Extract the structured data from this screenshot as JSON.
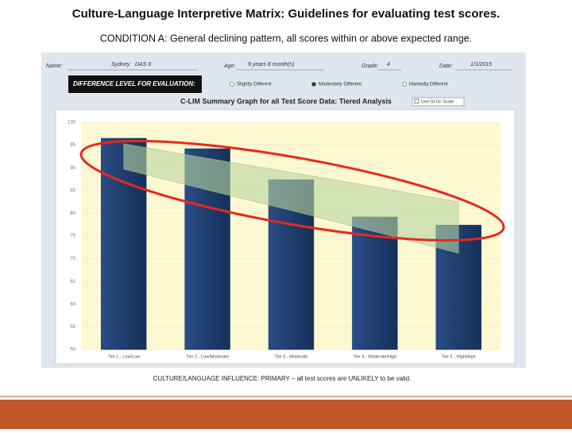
{
  "slide_title": "Culture-Language Interpretive Matrix: Guidelines for evaluating test scores.",
  "slide_subtitle": "CONDITION A: General declining pattern, all scores within or above expected range.",
  "form": {
    "name_label": "Name:",
    "name": "Sydney",
    "test": "DAS II",
    "age_label": "Age:",
    "age": "9 years 8 month(s)",
    "grade_label": "Grade:",
    "grade": "4",
    "date_label": "Date:",
    "date": "1/1/2015",
    "difference_label": "DIFFERENCE LEVEL FOR EVALUATION:",
    "options": [
      "Slightly Different",
      "Moderately Different",
      "Markedly Different"
    ],
    "checkbox": "Use Gf-Gc Scale"
  },
  "footer": "CULTURE/LANGUAGE INFLUENCE: PRIMARY – all test scores are UNLIKELY to be valid.",
  "chart_data": {
    "type": "bar",
    "title": "C-LIM Summary Graph for all Test Score Data: Tiered Analysis",
    "categories": [
      "Tier 1 - Low/Low",
      "Tier 2 - Low/Moderate",
      "Tier 3 - Moderate",
      "Tier 4 - Moderate/High",
      "Tier 5 - High/High"
    ],
    "values": [
      96.5,
      94.2,
      87.4,
      79.2,
      77.4
    ],
    "color": "#1f3d6e",
    "band": {
      "upper": [
        95.3,
        92.1,
        89,
        85.8,
        82.5
      ],
      "lower": [
        89.7,
        85.1,
        80.6,
        75.9,
        71.2
      ],
      "color": "#b9d6a0"
    },
    "ylim": [
      50,
      100
    ],
    "yticks": [
      50,
      55,
      60,
      65,
      70,
      75,
      80,
      85,
      90,
      95,
      100
    ]
  }
}
